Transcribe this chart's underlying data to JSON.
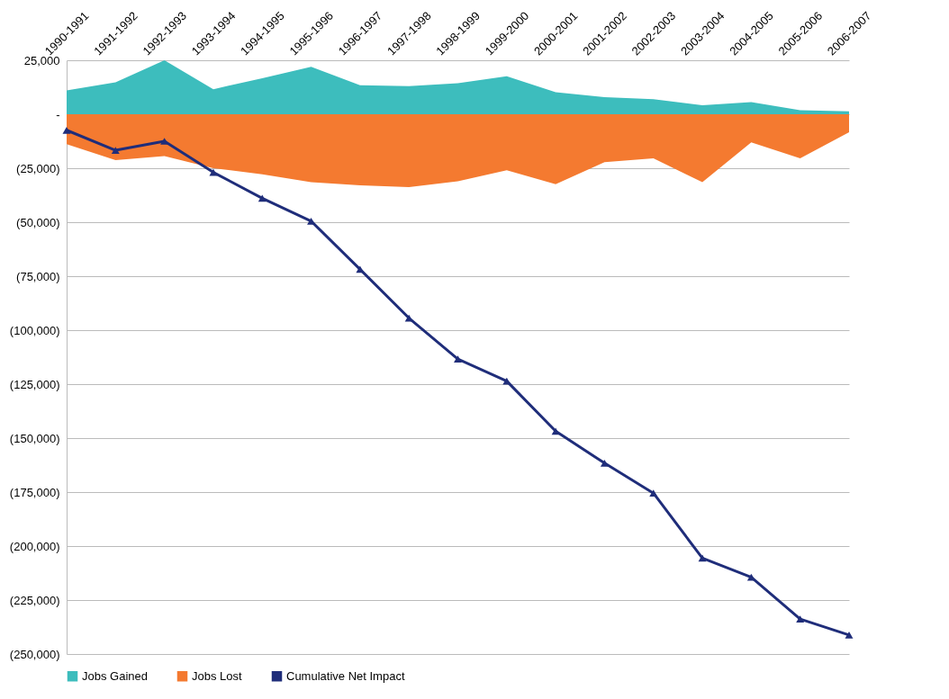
{
  "chart_data": {
    "type": "area",
    "categories": [
      "1990-1991",
      "1991-1992",
      "1992-1993",
      "1993-1994",
      "1994-1995",
      "1995-1996",
      "1996-1997",
      "1997-1998",
      "1998-1999",
      "1999-2000",
      "2000-2001",
      "2001-2002",
      "2002-2003",
      "2003-2004",
      "2004-2005",
      "2005-2006",
      "2006-2007"
    ],
    "series": [
      {
        "name": "Jobs Gained",
        "color": "#3dbdbd",
        "values": [
          11000,
          14800,
          25000,
          11600,
          16700,
          22000,
          13400,
          13000,
          14400,
          17600,
          10200,
          7900,
          7000,
          4200,
          5600,
          1900,
          1400
        ]
      },
      {
        "name": "Jobs Lost",
        "color": "#f47a30",
        "values": [
          -13900,
          -21300,
          -19400,
          -25000,
          -27800,
          -31500,
          -32900,
          -33800,
          -31000,
          -25900,
          -32400,
          -22200,
          -20400,
          -31500,
          -13000,
          -20400,
          -8300
        ]
      },
      {
        "name": "Cumulative Net Impact",
        "type": "line",
        "marker": "triangle",
        "color": "#1f2d7a",
        "values": [
          -7400,
          -16700,
          -12500,
          -26900,
          -38900,
          -49500,
          -71800,
          -94400,
          -113400,
          -123600,
          -146800,
          -161600,
          -175500,
          -205600,
          -214400,
          -233800,
          -241200
        ]
      }
    ],
    "ylim": [
      -250000,
      25000
    ],
    "yticks": [
      {
        "value": 25000,
        "label": "25,000"
      },
      {
        "value": 0,
        "label": "-"
      },
      {
        "value": -25000,
        "label": "(25,000)"
      },
      {
        "value": -50000,
        "label": "(50,000)"
      },
      {
        "value": -75000,
        "label": "(75,000)"
      },
      {
        "value": -100000,
        "label": "(100,000)"
      },
      {
        "value": -125000,
        "label": "(125,000)"
      },
      {
        "value": -150000,
        "label": "(150,000)"
      },
      {
        "value": -175000,
        "label": "(175,000)"
      },
      {
        "value": -200000,
        "label": "(200,000)"
      },
      {
        "value": -225000,
        "label": "(225,000)"
      },
      {
        "value": -250000,
        "label": "(250,000)"
      }
    ],
    "grid": "y",
    "legend": "bottom"
  }
}
